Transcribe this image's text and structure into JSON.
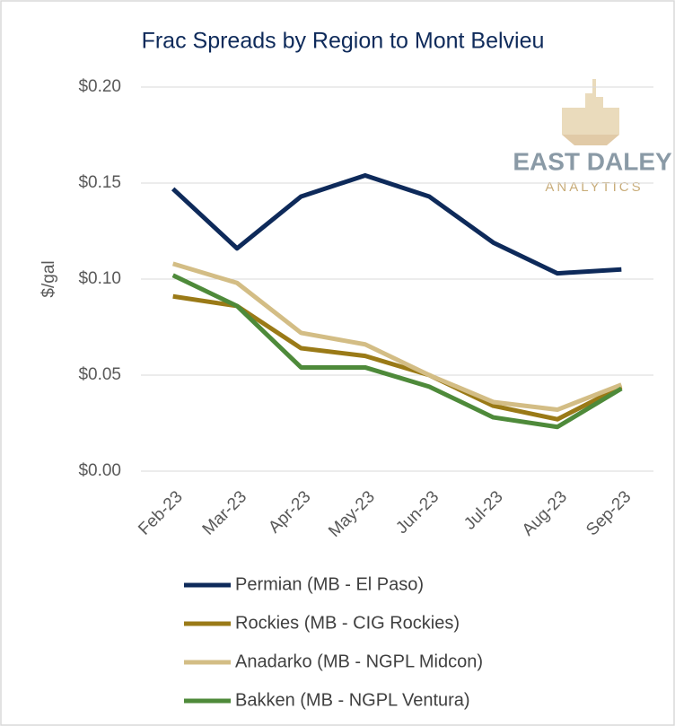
{
  "chart_data": {
    "type": "line",
    "title": "Frac Spreads by Region to Mont Belvieu",
    "ylabel": "$/gal",
    "watermark": {
      "name": "EAST DALEY",
      "tagline": "ANALYTICS"
    },
    "categories": [
      "Feb-23",
      "Mar-23",
      "Apr-23",
      "May-23",
      "Jun-23",
      "Jul-23",
      "Aug-23",
      "Sep-23"
    ],
    "series": [
      {
        "name": "Permian (MB - El Paso)",
        "color": "#0e2a5a",
        "values": [
          0.147,
          0.116,
          0.143,
          0.154,
          0.143,
          0.119,
          0.103,
          0.105
        ]
      },
      {
        "name": "Rockies (MB - CIG Rockies)",
        "color": "#9a7a17",
        "values": [
          0.091,
          0.086,
          0.064,
          0.06,
          0.05,
          0.034,
          0.027,
          0.044
        ]
      },
      {
        "name": "Anadarko (MB - NGPL Midcon)",
        "color": "#d3bd85",
        "values": [
          0.108,
          0.098,
          0.072,
          0.066,
          0.05,
          0.036,
          0.032,
          0.045
        ]
      },
      {
        "name": "Bakken (MB - NGPL Ventura)",
        "color": "#4e8a3a",
        "values": [
          0.102,
          0.086,
          0.054,
          0.054,
          0.044,
          0.028,
          0.023,
          0.043
        ]
      }
    ],
    "ylim": [
      0,
      0.2
    ],
    "yticks": [
      {
        "value": 0,
        "label": "$0.00"
      },
      {
        "value": 0.05,
        "label": "$0.05"
      },
      {
        "value": 0.1,
        "label": "$0.10"
      },
      {
        "value": 0.15,
        "label": "$0.15"
      },
      {
        "value": 0.2,
        "label": "$0.20"
      }
    ],
    "grid": true,
    "legend": "bottom"
  }
}
